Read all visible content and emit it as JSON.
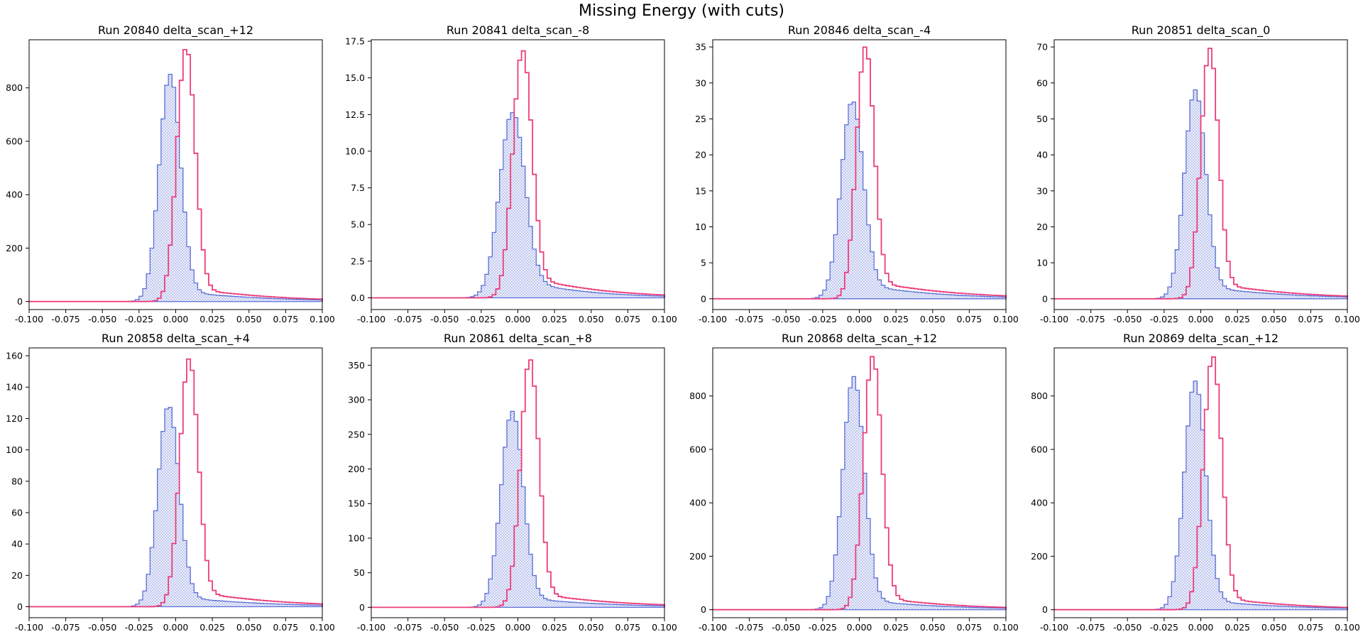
{
  "figure": {
    "title": "Missing Energy (with cuts)",
    "colors": {
      "blue": "#5b6fd6",
      "blue_fill": "#e6e9f8",
      "pink": "#ec3d7a",
      "axis": "#000000"
    }
  },
  "chart_data": [
    {
      "type": "histogram",
      "title": "Run 20840 delta_scan_+12",
      "xlim": [
        -0.1,
        0.1
      ],
      "ylim": [
        -30,
        980
      ],
      "xticks": [
        -0.1,
        -0.075,
        -0.05,
        -0.025,
        0,
        0.025,
        0.05,
        0.075,
        0.1
      ],
      "xtick_labels": [
        "-0.100",
        "-0.075",
        "-0.050",
        "-0.025",
        "0.000",
        "0.025",
        "0.050",
        "0.075",
        "0.100"
      ],
      "yticks": [
        0,
        200,
        400,
        600,
        800
      ],
      "ytick_labels": [
        "0",
        "200",
        "400",
        "600",
        "800"
      ],
      "series": [
        {
          "style": "filled-step",
          "color": "#5b6fd6",
          "peak": 850,
          "center": -0.004,
          "width": 0.0072,
          "tail_amp": 0.055,
          "tail_decay": 0.05
        },
        {
          "style": "step",
          "color": "#ec3d7a",
          "peak": 950,
          "center": 0.007,
          "width": 0.0062,
          "tail_amp": 0.06,
          "tail_decay": 0.05
        }
      ]
    },
    {
      "type": "histogram",
      "title": "Run 20841 delta_scan_-8",
      "xlim": [
        -0.1,
        0.1
      ],
      "ylim": [
        -0.8,
        17.6
      ],
      "xticks": [
        -0.1,
        -0.075,
        -0.05,
        -0.025,
        0,
        0.025,
        0.05,
        0.075,
        0.1
      ],
      "xtick_labels": [
        "-0.100",
        "-0.075",
        "-0.050",
        "-0.025",
        "0.000",
        "0.025",
        "0.050",
        "0.075",
        "0.100"
      ],
      "yticks": [
        0,
        2.5,
        5,
        7.5,
        10,
        12.5,
        15,
        17.5
      ],
      "ytick_labels": [
        "0.0",
        "2.5",
        "5.0",
        "7.5",
        "10.0",
        "12.5",
        "15.0",
        "17.5"
      ],
      "series": [
        {
          "style": "filled-step",
          "color": "#5b6fd6",
          "peak": 12.6,
          "center": -0.004,
          "width": 0.0085,
          "tail_amp": 0.12,
          "tail_decay": 0.04
        },
        {
          "style": "step",
          "color": "#ec3d7a",
          "peak": 16.8,
          "center": 0.003,
          "width": 0.0065,
          "tail_amp": 0.1,
          "tail_decay": 0.045
        }
      ]
    },
    {
      "type": "histogram",
      "title": "Run 20846 delta_scan_-4",
      "xlim": [
        -0.1,
        0.1
      ],
      "ylim": [
        -1.5,
        36
      ],
      "xticks": [
        -0.1,
        -0.075,
        -0.05,
        -0.025,
        0,
        0.025,
        0.05,
        0.075,
        0.1
      ],
      "xtick_labels": [
        "-0.100",
        "-0.075",
        "-0.050",
        "-0.025",
        "0.000",
        "0.025",
        "0.050",
        "0.075",
        "0.100"
      ],
      "yticks": [
        0,
        5,
        10,
        15,
        20,
        25,
        30,
        35
      ],
      "ytick_labels": [
        "0",
        "5",
        "10",
        "15",
        "20",
        "25",
        "30",
        "35"
      ],
      "series": [
        {
          "style": "filled-step",
          "color": "#5b6fd6",
          "peak": 27.4,
          "center": -0.005,
          "width": 0.0075,
          "tail_amp": 0.09,
          "tail_decay": 0.045
        },
        {
          "style": "step",
          "color": "#ec3d7a",
          "peak": 35,
          "center": 0.004,
          "width": 0.006,
          "tail_amp": 0.08,
          "tail_decay": 0.05
        }
      ]
    },
    {
      "type": "histogram",
      "title": "Run 20851 delta_scan_0",
      "xlim": [
        -0.1,
        0.1
      ],
      "ylim": [
        -3,
        72
      ],
      "xticks": [
        -0.1,
        -0.075,
        -0.05,
        -0.025,
        0,
        0.025,
        0.05,
        0.075,
        0.1
      ],
      "xtick_labels": [
        "-0.100",
        "-0.075",
        "-0.050",
        "-0.025",
        "0.000",
        "0.025",
        "0.050",
        "0.075",
        "0.100"
      ],
      "yticks": [
        0,
        10,
        20,
        30,
        40,
        50,
        60,
        70
      ],
      "ytick_labels": [
        "0",
        "10",
        "20",
        "30",
        "40",
        "50",
        "60",
        "70"
      ],
      "series": [
        {
          "style": "filled-step",
          "color": "#5b6fd6",
          "peak": 58,
          "center": -0.004,
          "width": 0.0072,
          "tail_amp": 0.07,
          "tail_decay": 0.05
        },
        {
          "style": "step",
          "color": "#ec3d7a",
          "peak": 69.5,
          "center": 0.006,
          "width": 0.006,
          "tail_amp": 0.07,
          "tail_decay": 0.05
        }
      ]
    },
    {
      "type": "histogram",
      "title": "Run 20858 delta_scan_+4",
      "xlim": [
        -0.1,
        0.1
      ],
      "ylim": [
        -7,
        165
      ],
      "xticks": [
        -0.1,
        -0.075,
        -0.05,
        -0.025,
        0,
        0.025,
        0.05,
        0.075,
        0.1
      ],
      "xtick_labels": [
        "-0.100",
        "-0.075",
        "-0.050",
        "-0.025",
        "0.000",
        "0.025",
        "0.050",
        "0.075",
        "0.100"
      ],
      "yticks": [
        0,
        20,
        40,
        60,
        80,
        100,
        120,
        140,
        160
      ],
      "ytick_labels": [
        "0",
        "20",
        "40",
        "60",
        "80",
        "100",
        "120",
        "140",
        "160"
      ],
      "series": [
        {
          "style": "filled-step",
          "color": "#5b6fd6",
          "peak": 128,
          "center": -0.005,
          "width": 0.0072,
          "tail_amp": 0.06,
          "tail_decay": 0.05
        },
        {
          "style": "step",
          "color": "#ec3d7a",
          "peak": 158,
          "center": 0.009,
          "width": 0.0062,
          "tail_amp": 0.07,
          "tail_decay": 0.05
        }
      ]
    },
    {
      "type": "histogram",
      "title": "Run 20861 delta_scan_+8",
      "xlim": [
        -0.1,
        0.1
      ],
      "ylim": [
        -15,
        375
      ],
      "xticks": [
        -0.1,
        -0.075,
        -0.05,
        -0.025,
        0,
        0.025,
        0.05,
        0.075,
        0.1
      ],
      "xtick_labels": [
        "-0.100",
        "-0.075",
        "-0.050",
        "-0.025",
        "0.000",
        "0.025",
        "0.050",
        "0.075",
        "0.100"
      ],
      "yticks": [
        0,
        50,
        100,
        150,
        200,
        250,
        300,
        350
      ],
      "ytick_labels": [
        "0",
        "50",
        "100",
        "150",
        "200",
        "250",
        "300",
        "350"
      ],
      "series": [
        {
          "style": "filled-step",
          "color": "#5b6fd6",
          "peak": 283,
          "center": -0.004,
          "width": 0.0075,
          "tail_amp": 0.06,
          "tail_decay": 0.05
        },
        {
          "style": "step",
          "color": "#ec3d7a",
          "peak": 358,
          "center": 0.008,
          "width": 0.0062,
          "tail_amp": 0.065,
          "tail_decay": 0.05
        }
      ]
    },
    {
      "type": "histogram",
      "title": "Run 20868 delta_scan_+12",
      "xlim": [
        -0.1,
        0.1
      ],
      "ylim": [
        -30,
        980
      ],
      "xticks": [
        -0.1,
        -0.075,
        -0.05,
        -0.025,
        0,
        0.025,
        0.05,
        0.075,
        0.1
      ],
      "xtick_labels": [
        "-0.100",
        "-0.075",
        "-0.050",
        "-0.025",
        "0.000",
        "0.025",
        "0.050",
        "0.075",
        "0.100"
      ],
      "yticks": [
        0,
        200,
        400,
        600,
        800
      ],
      "ytick_labels": [
        "0",
        "200",
        "400",
        "600",
        "800"
      ],
      "series": [
        {
          "style": "filled-step",
          "color": "#5b6fd6",
          "peak": 872,
          "center": -0.004,
          "width": 0.0072,
          "tail_amp": 0.05,
          "tail_decay": 0.05
        },
        {
          "style": "step",
          "color": "#ec3d7a",
          "peak": 948,
          "center": 0.009,
          "width": 0.0062,
          "tail_amp": 0.055,
          "tail_decay": 0.05
        }
      ]
    },
    {
      "type": "histogram",
      "title": "Run 20869 delta_scan_+12",
      "xlim": [
        -0.1,
        0.1
      ],
      "ylim": [
        -30,
        980
      ],
      "xticks": [
        -0.1,
        -0.075,
        -0.05,
        -0.025,
        0,
        0.025,
        0.05,
        0.075,
        0.1
      ],
      "xtick_labels": [
        "-0.100",
        "-0.075",
        "-0.050",
        "-0.025",
        "0.000",
        "0.025",
        "0.050",
        "0.075",
        "0.100"
      ],
      "yticks": [
        0,
        200,
        400,
        600,
        800
      ],
      "ytick_labels": [
        "0",
        "200",
        "400",
        "600",
        "800"
      ],
      "series": [
        {
          "style": "filled-step",
          "color": "#5b6fd6",
          "peak": 855,
          "center": -0.004,
          "width": 0.0072,
          "tail_amp": 0.05,
          "tail_decay": 0.05
        },
        {
          "style": "step",
          "color": "#ec3d7a",
          "peak": 948,
          "center": 0.008,
          "width": 0.0062,
          "tail_amp": 0.055,
          "tail_decay": 0.05
        }
      ]
    }
  ]
}
